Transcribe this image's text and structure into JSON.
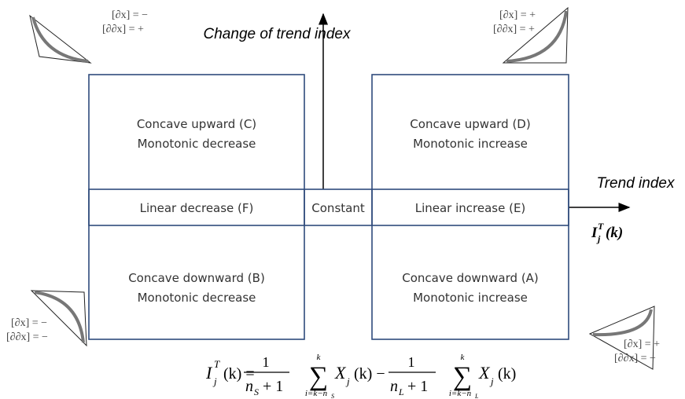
{
  "axes": {
    "vertical": "Change of trend index",
    "horizontal": "Trend index",
    "symbol": {
      "base": "I",
      "sub": "j",
      "sup": "T",
      "arg": "(k)"
    }
  },
  "regions": [
    {
      "line1": "Concave upward (C)",
      "line2": "Monotonic decrease"
    },
    {
      "line1": "Concave upward (D)",
      "line2": "Monotonic increase"
    },
    {
      "line1": "Concave downward (B)",
      "line2": "Monotonic decrease"
    },
    {
      "line1": "Concave downward (A)",
      "line2": "Monotonic increase"
    }
  ],
  "middle": [
    "Linear decrease (F)",
    "Constant",
    "Linear increase (E)"
  ],
  "corners": [
    {
      "dx": "[∂x] = −",
      "ddx": "[∂∂x] = +"
    },
    {
      "dx": "[∂x] = +",
      "ddx": "[∂∂x] = +"
    },
    {
      "dx": "[∂x] = −",
      "ddx": "[∂∂x] = −"
    },
    {
      "dx": "[∂x] = +",
      "ddx": "[∂∂x] = −"
    }
  ],
  "formula": {
    "lhs": "I",
    "lhs_sub": "j",
    "lhs_sup": "T",
    "lhs_arg": "(k) =",
    "num": "1",
    "den_var": "n",
    "den1_sub": "S",
    "den2_sub": "L",
    "den_plus": "+ 1",
    "sum_upper": "k",
    "sum_lower": "i=k−n",
    "sum1_lower_sub": "S",
    "sum2_lower_sub": "L",
    "sigma": "∑",
    "body": "X",
    "body_sub": "j",
    "body_arg1": "(k) −",
    "body_arg2": "(k)"
  }
}
